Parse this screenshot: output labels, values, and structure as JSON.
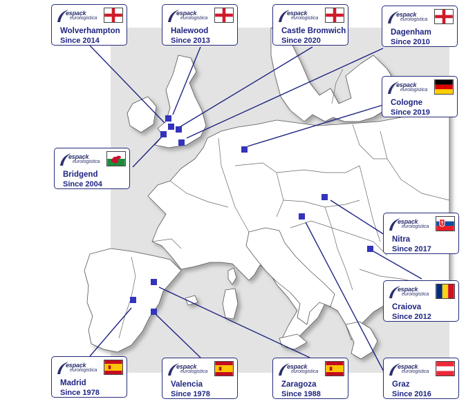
{
  "brand": {
    "logo_top": "espack",
    "logo_bottom": "eurologistica",
    "accent": "#2b2f6e",
    "marker_color": "#3333bb"
  },
  "sites": [
    {
      "id": "wolverhampton",
      "name": "Wolverhampton",
      "since": "Since 2014",
      "flag": "england-flag-icon"
    },
    {
      "id": "halewood",
      "name": "Halewood",
      "since": "Since 2013",
      "flag": "england-flag-icon"
    },
    {
      "id": "castle-bromwich",
      "name": "Castle Bromwich",
      "since": "Since 2020",
      "flag": "england-flag-icon"
    },
    {
      "id": "dagenham",
      "name": "Dagenham",
      "since": "Since 2010",
      "flag": "england-flag-icon"
    },
    {
      "id": "cologne",
      "name": "Cologne",
      "since": "Since 2019",
      "flag": "germany-flag-icon"
    },
    {
      "id": "bridgend",
      "name": "Bridgend",
      "since": "Since 2004",
      "flag": "wales-flag-icon"
    },
    {
      "id": "nitra",
      "name": "Nitra",
      "since": "Since 2017",
      "flag": "slovakia-flag-icon"
    },
    {
      "id": "craiova",
      "name": "Craiova",
      "since": "Since 2012",
      "flag": "romania-flag-icon"
    },
    {
      "id": "madrid",
      "name": "Madrid",
      "since": "Since 1978",
      "flag": "spain-flag-icon"
    },
    {
      "id": "valencia",
      "name": "Valencia",
      "since": "Since 1978",
      "flag": "spain-flag-icon"
    },
    {
      "id": "zaragoza",
      "name": "Zaragoza",
      "since": "Since 1988",
      "flag": "spain-flag-icon"
    },
    {
      "id": "graz",
      "name": "Graz",
      "since": "Since 2016",
      "flag": "austria-flag-icon"
    }
  ]
}
